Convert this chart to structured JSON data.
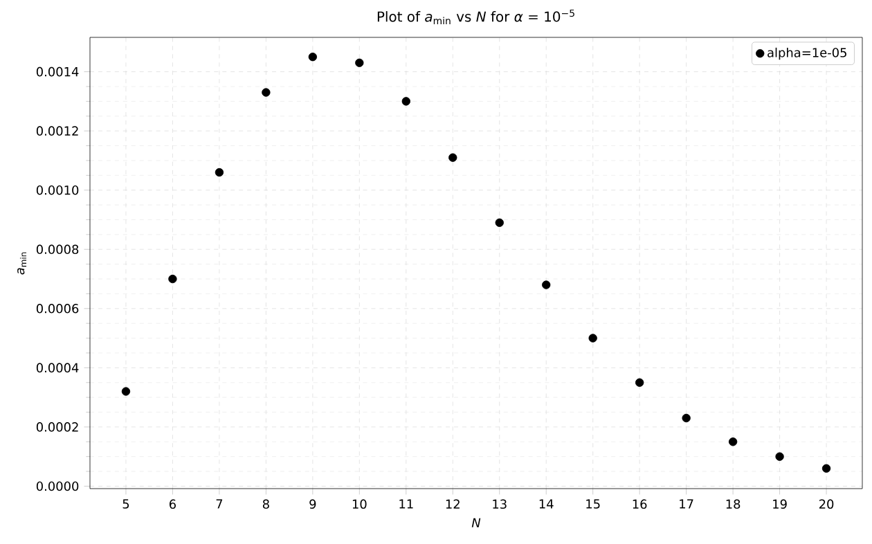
{
  "chart_data": {
    "type": "scatter",
    "title": "Plot of *a*$_{min}$ vs *N* for *α* = 10$^{−5}$",
    "xlabel": "*N*",
    "ylabel": "*a*$_{min}$",
    "x": [
      5,
      6,
      7,
      8,
      9,
      10,
      11,
      12,
      13,
      14,
      15,
      16,
      17,
      18,
      19,
      20
    ],
    "series": [
      {
        "name": "alpha=1e-05",
        "color": "#000000",
        "values": [
          0.00032,
          0.0007,
          0.00106,
          0.00133,
          0.00145,
          0.00143,
          0.0013,
          0.00111,
          0.00089,
          0.00068,
          0.0005,
          0.00035,
          0.00023,
          0.00015,
          0.0001,
          6e-05
        ]
      }
    ],
    "xlim": [
      4.23,
      20.77
    ],
    "ylim": [
      -8.3e-06,
      0.001516
    ],
    "xticks": [
      5,
      6,
      7,
      8,
      9,
      10,
      11,
      12,
      13,
      14,
      15,
      16,
      17,
      18,
      19,
      20
    ],
    "yticks": [
      {
        "value": 0,
        "label": "0.0000"
      },
      {
        "value": 0.0002,
        "label": "0.0002"
      },
      {
        "value": 0.0004,
        "label": "0.0004"
      },
      {
        "value": 0.0006,
        "label": "0.0006"
      },
      {
        "value": 0.0008,
        "label": "0.0008"
      },
      {
        "value": 0.001,
        "label": "0.0010"
      },
      {
        "value": 0.0012,
        "label": "0.0012"
      },
      {
        "value": 0.0014,
        "label": "0.0014"
      }
    ],
    "grid": true,
    "legend": "top right"
  }
}
